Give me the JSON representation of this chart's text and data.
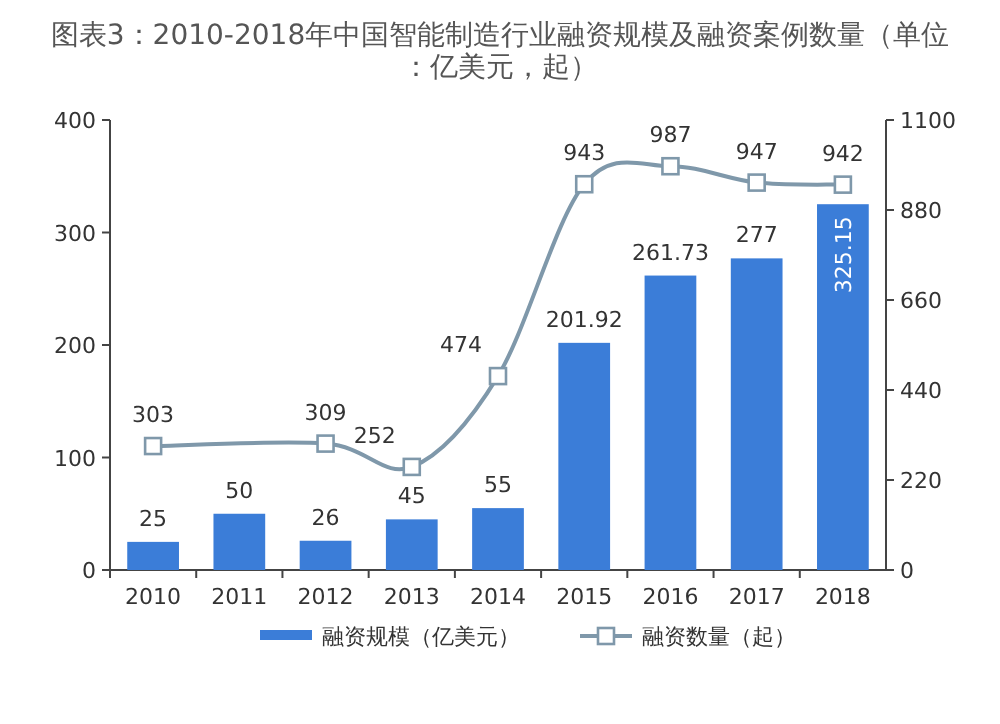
{
  "chart_data": {
    "type": "bar",
    "title": "图表3：2010-2018年中国智能制造行业融资规模及融资案例数量（单位：亿美元，起）",
    "categories": [
      "2010",
      "2011",
      "2012",
      "2013",
      "2014",
      "2015",
      "2016",
      "2017",
      "2018"
    ],
    "series": [
      {
        "name": "融资规模（亿美元）",
        "color": "#3b7dd8",
        "values": [
          25,
          50,
          26,
          45,
          55,
          201.92,
          261.73,
          277,
          325.15
        ],
        "value_labels": [
          "25",
          "50",
          "26",
          "45",
          "55",
          "201.92",
          "261.73",
          "277",
          "325.15"
        ]
      },
      {
        "name": "融资数量（起）",
        "type": "line",
        "axis": "y2",
        "color": "#7f98aa",
        "marker": "square",
        "values": [
          303,
          null,
          309,
          252,
          474,
          943,
          987,
          947,
          942
        ],
        "value_labels": [
          "303",
          null,
          "309",
          "252",
          "474",
          "943",
          "987",
          "947",
          "942"
        ]
      }
    ],
    "ylim": [
      0,
      400
    ],
    "yticks": [
      0,
      100,
      200,
      300,
      400
    ],
    "y2lim": [
      0,
      1100
    ],
    "y2ticks": [
      0,
      220,
      440,
      660,
      880,
      1100
    ],
    "legend": "bottom",
    "grid": false
  }
}
